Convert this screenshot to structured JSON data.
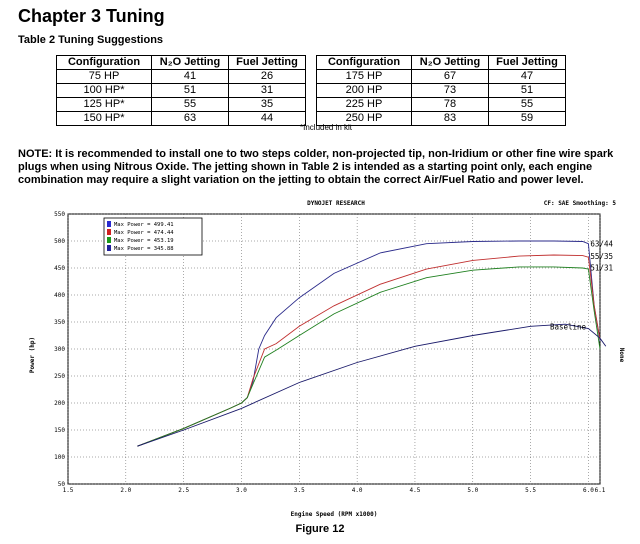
{
  "chapter_title": "Chapter 3  Tuning",
  "table_title": "Table 2  Tuning Suggestions",
  "table": {
    "headers": [
      "Configuration",
      "N₂O Jetting",
      "Fuel Jetting",
      "Configuration",
      "N₂O Jetting",
      "Fuel Jetting"
    ],
    "rows": [
      [
        "75 HP",
        "41",
        "26",
        "175 HP",
        "67",
        "47"
      ],
      [
        "100 HP*",
        "51",
        "31",
        "200 HP",
        "73",
        "51"
      ],
      [
        "125 HP*",
        "55",
        "35",
        "225 HP",
        "78",
        "55"
      ],
      [
        "150 HP*",
        "63",
        "44",
        "250 HP",
        "83",
        "59"
      ]
    ]
  },
  "footnote": "*Included in kit",
  "note": "NOTE: It is recommended to install one to two steps colder, non-projected tip, non-Iridium or other fine wire spark plugs when using Nitrous Oxide. The jetting shown in Table 2 is intended as a starting point only, each engine combination may require a slight variation on the jetting to obtain the correct Air/Fuel Ratio and power level.",
  "figure_caption": "Figure 12",
  "chart_data": {
    "type": "line",
    "header_left": "DYNOJET RESEARCH",
    "header_right": "CF: SAE  Smoothing: 5",
    "xlabel": "Engine Speed (RPM x1000)",
    "ylabel": "Power (hp)",
    "right_label": "None",
    "xlim": [
      1.5,
      6.1
    ],
    "ylim": [
      50,
      550
    ],
    "xticks": [
      "1.5",
      "2.0",
      "2.5",
      "3.0",
      "3.5",
      "4.0",
      "4.5",
      "5.0",
      "5.5",
      "6.0",
      "6.1"
    ],
    "xtick_values": [
      1.5,
      2.0,
      2.5,
      3.0,
      3.5,
      4.0,
      4.5,
      5.0,
      5.5,
      6.0,
      6.1
    ],
    "yticks": [
      50,
      100,
      150,
      200,
      250,
      300,
      350,
      400,
      450,
      500,
      550
    ],
    "grid": true,
    "legend": [
      {
        "label": "Max Power = 499.41",
        "color": "#2a2ad0"
      },
      {
        "label": "Max Power = 474.44",
        "color": "#d02020"
      },
      {
        "label": "Max Power = 453.19",
        "color": "#1a9a1a"
      },
      {
        "label": "Max Power = 345.88",
        "color": "#20209a"
      }
    ],
    "series": [
      {
        "name": "63/44",
        "color": "#2a2a8a",
        "x": [
          2.1,
          2.5,
          2.9,
          3.0,
          3.05,
          3.1,
          3.15,
          3.2,
          3.3,
          3.5,
          3.8,
          4.2,
          4.6,
          5.0,
          5.4,
          5.7,
          5.95,
          6.0,
          6.05,
          6.1
        ],
        "y": [
          120,
          153,
          190,
          200,
          210,
          240,
          300,
          325,
          358,
          395,
          440,
          478,
          495,
          499,
          500,
          500,
          499,
          495,
          380,
          315
        ]
      },
      {
        "name": "55/35",
        "color": "#c03030",
        "x": [
          2.1,
          2.5,
          2.9,
          3.0,
          3.05,
          3.1,
          3.2,
          3.3,
          3.5,
          3.8,
          4.2,
          4.6,
          5.0,
          5.4,
          5.7,
          5.95,
          6.0,
          6.05,
          6.1
        ],
        "y": [
          120,
          153,
          190,
          200,
          210,
          245,
          300,
          310,
          342,
          380,
          420,
          448,
          464,
          472,
          474,
          473,
          470,
          380,
          318
        ]
      },
      {
        "name": "51/31",
        "color": "#208020",
        "x": [
          2.1,
          2.5,
          2.9,
          3.0,
          3.05,
          3.1,
          3.2,
          3.3,
          3.5,
          3.8,
          4.2,
          4.6,
          5.0,
          5.4,
          5.7,
          5.95,
          6.0,
          6.05,
          6.1
        ],
        "y": [
          120,
          153,
          190,
          200,
          210,
          235,
          285,
          298,
          325,
          365,
          405,
          432,
          446,
          452,
          452,
          450,
          448,
          370,
          300
        ]
      },
      {
        "name": "Baseline",
        "color": "#1a1a6a",
        "x": [
          2.1,
          2.5,
          3.0,
          3.5,
          4.0,
          4.5,
          5.0,
          5.5,
          5.8,
          6.0,
          6.1,
          6.15
        ],
        "y": [
          120,
          150,
          190,
          238,
          275,
          305,
          325,
          342,
          346,
          338,
          320,
          305
        ]
      }
    ]
  }
}
